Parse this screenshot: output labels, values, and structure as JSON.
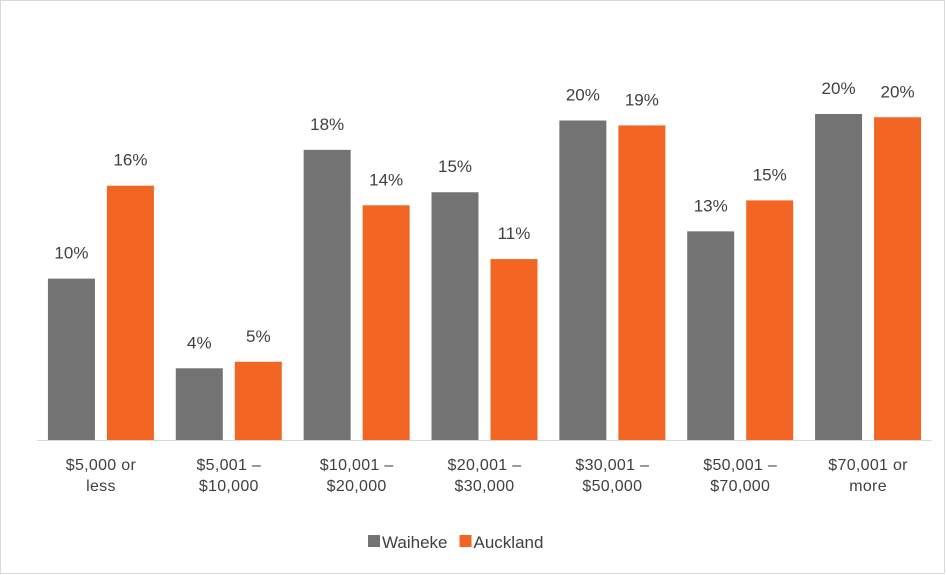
{
  "chart_data": {
    "type": "bar",
    "categories": [
      "$5,000 or less",
      "$5,001 – $10,000",
      "$10,001 – $20,000",
      "$20,001 – $30,000",
      "$30,001 – $50,000",
      "$50,001 – $70,000",
      "$70,001 or more"
    ],
    "series": [
      {
        "name": "Waiheke",
        "color": "#737373",
        "values": [
          9.9,
          4.4,
          17.8,
          15.2,
          19.6,
          12.8,
          20.0
        ],
        "value_labels": [
          "10%",
          "4%",
          "18%",
          "15%",
          "20%",
          "13%",
          "20%"
        ]
      },
      {
        "name": "Auckland",
        "color": "#f26522",
        "values": [
          15.6,
          4.8,
          14.4,
          11.1,
          19.3,
          14.7,
          19.8
        ],
        "value_labels": [
          "16%",
          "5%",
          "14%",
          "11%",
          "19%",
          "15%",
          "20%"
        ]
      }
    ],
    "legend": "bottom"
  }
}
